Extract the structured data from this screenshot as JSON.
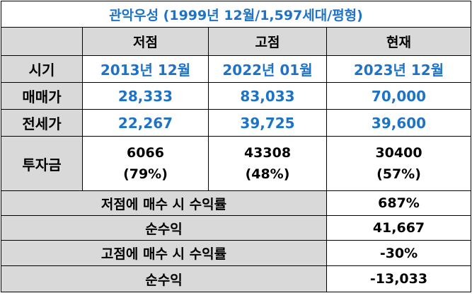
{
  "title": "관악우성 (1999년 12월/1,597세대/평형)",
  "columns": [
    "저점",
    "고점",
    "현재"
  ],
  "rows": [
    {
      "label": "시기",
      "values": [
        "2013년 12월",
        "2022년 01월",
        "2023년 12월"
      ]
    },
    {
      "label": "매매가",
      "values": [
        "28,333",
        "83,033",
        "70,000"
      ]
    },
    {
      "label": "전세가",
      "values": [
        "22,267",
        "39,725",
        "39,600"
      ]
    }
  ],
  "investment": {
    "label": "투자금",
    "values": [
      {
        "amount": "6066",
        "ratio": "(79%)"
      },
      {
        "amount": "43308",
        "ratio": "(48%)"
      },
      {
        "amount": "30400",
        "ratio": "(57%)"
      }
    ]
  },
  "summary": [
    {
      "label": "저점에 매수 시 수익률",
      "value": "687%"
    },
    {
      "label": "순수익",
      "value": "41,667"
    },
    {
      "label": "고점에 매수 시 수익률",
      "value": "-30%"
    },
    {
      "label": "순수익",
      "value": "-13,033"
    }
  ],
  "colors": {
    "accent": "#1f73c6",
    "header_fill": "#d9d9d9"
  }
}
